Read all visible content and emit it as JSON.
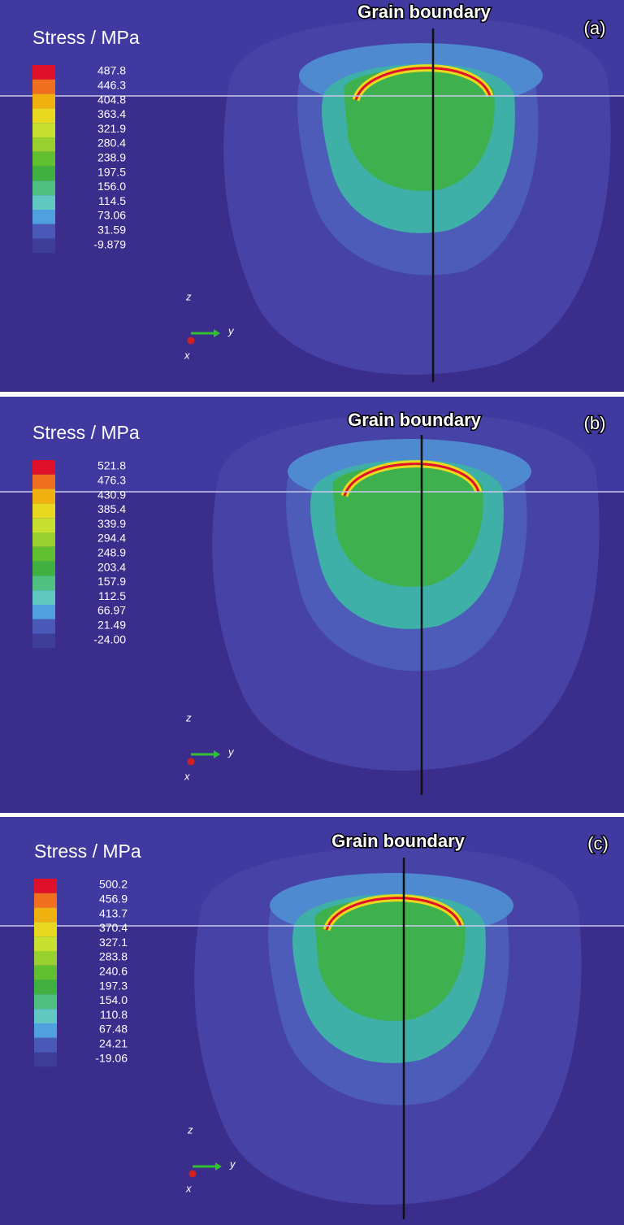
{
  "panels": [
    {
      "label": "(a)",
      "annotation": "Grain boundary",
      "legend_title": "Stress / MPa",
      "legend_values": [
        "487.8",
        "446.3",
        "404.8",
        "363.4",
        "321.9",
        "280.4",
        "238.9",
        "197.5",
        "156.0",
        "114.5",
        "73.06",
        "31.59",
        "-9.879"
      ],
      "axes": {
        "z": "z",
        "y": "y",
        "x": "x"
      }
    },
    {
      "label": "(b)",
      "annotation": "Grain boundary",
      "legend_title": "Stress / MPa",
      "legend_values": [
        "521.8",
        "476.3",
        "430.9",
        "385.4",
        "339.9",
        "294.4",
        "248.9",
        "203.4",
        "157.9",
        "112.5",
        "66.97",
        "21.49",
        "-24.00"
      ],
      "axes": {
        "z": "z",
        "y": "y",
        "x": "x"
      }
    },
    {
      "label": "(c)",
      "annotation": "Grain boundary",
      "legend_title": "Stress / MPa",
      "legend_values": [
        "500.2",
        "456.9",
        "413.7",
        "370.4",
        "327.1",
        "283.8",
        "240.6",
        "197.3",
        "154.0",
        "110.8",
        "67.48",
        "24.21",
        "-19.06"
      ],
      "axes": {
        "z": "z",
        "y": "y",
        "x": "x"
      }
    }
  ]
}
